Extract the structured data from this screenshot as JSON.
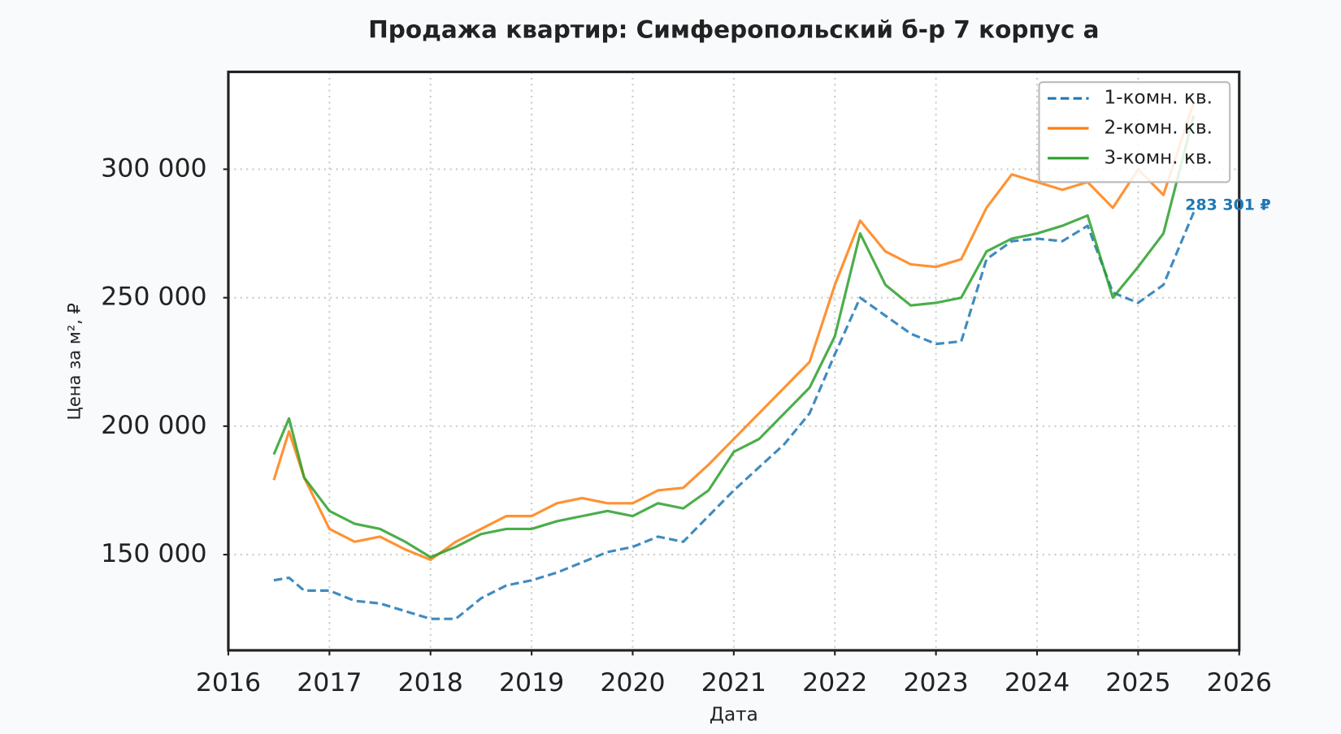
{
  "chart_data": {
    "type": "line",
    "title": "Продажа квартир: Симферопольский б-р 7 корпус а",
    "xlabel": "Дата",
    "ylabel": "Цена за м², ₽",
    "x": [
      2016.45,
      2016.6,
      2016.75,
      2017.0,
      2017.25,
      2017.5,
      2017.75,
      2018.0,
      2018.25,
      2018.5,
      2018.75,
      2019.0,
      2019.25,
      2019.5,
      2019.75,
      2020.0,
      2020.25,
      2020.5,
      2020.75,
      2021.0,
      2021.25,
      2021.5,
      2021.75,
      2022.0,
      2022.25,
      2022.5,
      2022.75,
      2023.0,
      2023.25,
      2023.5,
      2023.75,
      2024.0,
      2024.25,
      2024.5,
      2024.75,
      2025.0,
      2025.25,
      2025.55
    ],
    "series": [
      {
        "name": "1-комн. кв.",
        "color": "#1f77b4",
        "linestyle": "dashed",
        "values": [
          140000,
          141000,
          136000,
          136000,
          132000,
          131000,
          128000,
          125000,
          125000,
          133000,
          138000,
          140000,
          143000,
          147000,
          151000,
          153000,
          157000,
          155000,
          165000,
          175000,
          184000,
          193000,
          205000,
          228000,
          250000,
          243000,
          236000,
          232000,
          233000,
          265000,
          272000,
          273000,
          272000,
          278000,
          252000,
          248000,
          255000,
          283301
        ],
        "annotation": "283 301 ₽"
      },
      {
        "name": "2-комн. кв.",
        "color": "#ff7f0e",
        "linestyle": "solid",
        "values": [
          179000,
          198000,
          180000,
          160000,
          155000,
          157000,
          152000,
          148000,
          155000,
          160000,
          165000,
          165000,
          170000,
          172000,
          170000,
          170000,
          175000,
          176000,
          185000,
          195000,
          205000,
          215000,
          225000,
          255000,
          280000,
          268000,
          263000,
          262000,
          265000,
          285000,
          298000,
          295000,
          292000,
          295000,
          285000,
          300000,
          290000,
          326000
        ]
      },
      {
        "name": "3-комн. кв.",
        "color": "#2ca02c",
        "linestyle": "solid",
        "values": [
          189000,
          203000,
          180000,
          167000,
          162000,
          160000,
          155000,
          149000,
          153000,
          158000,
          160000,
          160000,
          163000,
          165000,
          167000,
          165000,
          170000,
          168000,
          175000,
          190000,
          195000,
          205000,
          215000,
          235000,
          275000,
          255000,
          247000,
          248000,
          250000,
          268000,
          273000,
          275000,
          278000,
          282000,
          250000,
          262000,
          275000,
          321000
        ]
      }
    ],
    "xlim": [
      2016,
      2026
    ],
    "xticks": [
      2016,
      2017,
      2018,
      2019,
      2020,
      2021,
      2022,
      2023,
      2024,
      2025,
      2026
    ],
    "ylim": [
      112750,
      337900
    ],
    "yticks": [
      {
        "value": 150000,
        "label": "150 000"
      },
      {
        "value": 200000,
        "label": "200 000"
      },
      {
        "value": 250000,
        "label": "250 000"
      },
      {
        "value": 300000,
        "label": "300 000"
      }
    ],
    "grid": true,
    "legend": "upper right"
  }
}
